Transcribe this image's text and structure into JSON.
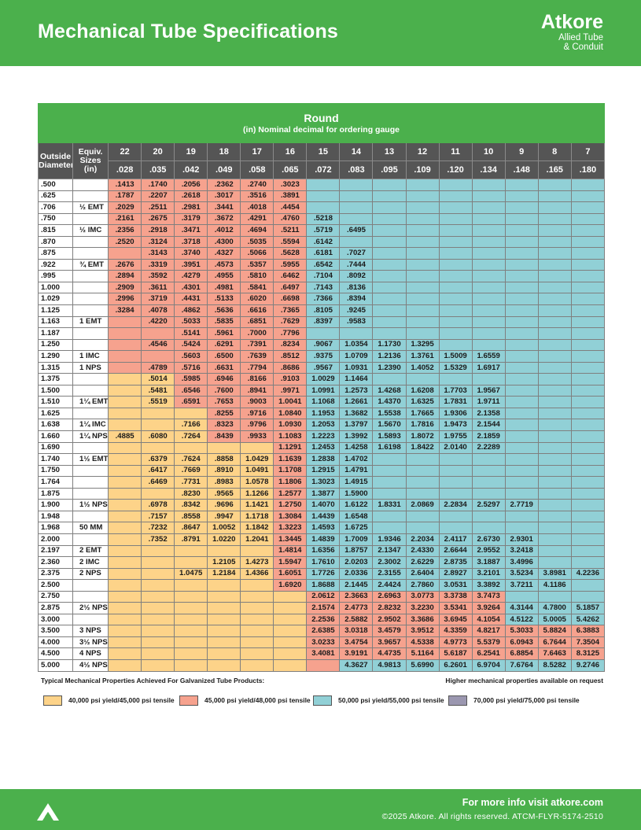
{
  "header": {
    "title": "Mechanical Tube Specifications",
    "brand_name": "Atkore",
    "brand_sub1": "Allied Tube",
    "brand_sub2": "& Conduit"
  },
  "table": {
    "title": "Round",
    "subtitle": "(in) Nominal decimal for ordering gauge",
    "col_od_label": "Outside Diameter",
    "col_equiv_label": "Equiv. Sizes (in)",
    "gauges": [
      "22",
      "20",
      "19",
      "18",
      "17",
      "16",
      "15",
      "14",
      "13",
      "12",
      "11",
      "10",
      "9",
      "8",
      "7"
    ],
    "walls": [
      ".028",
      ".035",
      ".042",
      ".049",
      ".058",
      ".065",
      ".072",
      ".083",
      ".095",
      ".109",
      ".120",
      ".134",
      ".148",
      ".165",
      ".180"
    ],
    "rows": [
      {
        "od": ".500",
        "eq": "",
        "c": "SSSSSSBBBBBBBBB",
        "v": [
          ".1413",
          ".1740",
          ".2056",
          ".2362",
          ".2740",
          ".3023",
          "",
          "",
          "",
          "",
          "",
          "",
          "",
          "",
          ""
        ]
      },
      {
        "od": ".625",
        "eq": "",
        "c": "SSSSSSBBBBBBBBB",
        "v": [
          ".1787",
          ".2207",
          ".2618",
          ".3017",
          ".3516",
          ".3891",
          "",
          "",
          "",
          "",
          "",
          "",
          "",
          "",
          ""
        ]
      },
      {
        "od": ".706",
        "eq": "½ EMT",
        "c": "SSSSSSBBBBBBBBB",
        "v": [
          ".2029",
          ".2511",
          ".2981",
          ".3441",
          ".4018",
          ".4454",
          "",
          "",
          "",
          "",
          "",
          "",
          "",
          "",
          ""
        ]
      },
      {
        "od": ".750",
        "eq": "",
        "c": "SSSSSSBBBBBBBBB",
        "v": [
          ".2161",
          ".2675",
          ".3179",
          ".3672",
          ".4291",
          ".4760",
          ".5218",
          "",
          "",
          "",
          "",
          "",
          "",
          "",
          ""
        ]
      },
      {
        "od": ".815",
        "eq": "½ IMC",
        "c": "SSSSSSBBBBBBBBB",
        "v": [
          ".2356",
          ".2918",
          ".3471",
          ".4012",
          ".4694",
          ".5211",
          ".5719",
          ".6495",
          "",
          "",
          "",
          "",
          "",
          "",
          ""
        ]
      },
      {
        "od": ".870",
        "eq": "",
        "c": "SSSSSSBBBBBBBBB",
        "v": [
          ".2520",
          ".3124",
          ".3718",
          ".4300",
          ".5035",
          ".5594",
          ".6142",
          "",
          "",
          "",
          "",
          "",
          "",
          "",
          ""
        ]
      },
      {
        "od": ".875",
        "eq": "",
        "c": "SSSSSSBBBBBBBBB",
        "v": [
          "",
          ".3143",
          ".3740",
          ".4327",
          ".5066",
          ".5628",
          ".6181",
          ".7027",
          "",
          "",
          "",
          "",
          "",
          "",
          ""
        ]
      },
      {
        "od": ".922",
        "eq": "¾ EMT",
        "c": "SSSSSSBBBBBBBBB",
        "v": [
          ".2676",
          ".3319",
          ".3951",
          ".4573",
          ".5357",
          ".5955",
          ".6542",
          ".7444",
          "",
          "",
          "",
          "",
          "",
          "",
          ""
        ]
      },
      {
        "od": ".995",
        "eq": "",
        "c": "SSSSSSBBBBBBBBB",
        "v": [
          ".2894",
          ".3592",
          ".4279",
          ".4955",
          ".5810",
          ".6462",
          ".7104",
          ".8092",
          "",
          "",
          "",
          "",
          "",
          "",
          ""
        ]
      },
      {
        "od": "1.000",
        "eq": "",
        "c": "SSSSSSBBBBBBBBB",
        "v": [
          ".2909",
          ".3611",
          ".4301",
          ".4981",
          ".5841",
          ".6497",
          ".7143",
          ".8136",
          "",
          "",
          "",
          "",
          "",
          "",
          ""
        ]
      },
      {
        "od": "1.029",
        "eq": "",
        "c": "SSSSSSBBBBBBBBB",
        "v": [
          ".2996",
          ".3719",
          ".4431",
          ".5133",
          ".6020",
          ".6698",
          ".7366",
          ".8394",
          "",
          "",
          "",
          "",
          "",
          "",
          ""
        ]
      },
      {
        "od": "1.125",
        "eq": "",
        "c": "SSSSSSBBBBBBBBB",
        "v": [
          ".3284",
          ".4078",
          ".4862",
          ".5636",
          ".6616",
          ".7365",
          ".8105",
          ".9245",
          "",
          "",
          "",
          "",
          "",
          "",
          ""
        ]
      },
      {
        "od": "1.163",
        "eq": "1 EMT",
        "c": "SSSSSSBBBBBBBBB",
        "v": [
          "",
          ".4220",
          ".5033",
          ".5835",
          ".6851",
          ".7629",
          ".8397",
          ".9583",
          "",
          "",
          "",
          "",
          "",
          "",
          ""
        ]
      },
      {
        "od": "1.187",
        "eq": "",
        "c": "SSSSSSBBBBBBBBB",
        "v": [
          "",
          "",
          ".5141",
          ".5961",
          ".7000",
          ".7796",
          "",
          "",
          "",
          "",
          "",
          "",
          "",
          "",
          ""
        ]
      },
      {
        "od": "1.250",
        "eq": "",
        "c": "SSSSSSBBBBBBBBB",
        "v": [
          "",
          ".4546",
          ".5424",
          ".6291",
          ".7391",
          ".8234",
          ".9067",
          "1.0354",
          "1.1730",
          "1.3295",
          "",
          "",
          "",
          "",
          ""
        ]
      },
      {
        "od": "1.290",
        "eq": "1 IMC",
        "c": "SSSSSSBBBBBBBBB",
        "v": [
          "",
          "",
          ".5603",
          ".6500",
          ".7639",
          ".8512",
          ".9375",
          "1.0709",
          "1.2136",
          "1.3761",
          "1.5009",
          "1.6559",
          "",
          "",
          ""
        ]
      },
      {
        "od": "1.315",
        "eq": "1 NPS",
        "c": "SSSSSSBBBBBBBBB",
        "v": [
          "",
          ".4789",
          ".5716",
          ".6631",
          ".7794",
          ".8686",
          ".9567",
          "1.0931",
          "1.2390",
          "1.4052",
          "1.5329",
          "1.6917",
          "",
          "",
          ""
        ]
      },
      {
        "od": "1.375",
        "eq": "",
        "c": "YYSSSSBBBBBBBBB",
        "v": [
          "",
          ".5014",
          ".5985",
          ".6946",
          ".8166",
          ".9103",
          "1.0029",
          "1.1464",
          "",
          "",
          "",
          "",
          "",
          "",
          ""
        ]
      },
      {
        "od": "1.500",
        "eq": "",
        "c": "YYSSSSBBBBBBBBB",
        "v": [
          "",
          ".5481",
          ".6546",
          ".7600",
          ".8941",
          ".9971",
          "1.0991",
          "1.2573",
          "1.4268",
          "1.6208",
          "1.7703",
          "1.9567",
          "",
          "",
          ""
        ]
      },
      {
        "od": "1.510",
        "eq": "1¼ EMT",
        "c": "YYSSSSBBBBBBBBB",
        "v": [
          "",
          ".5519",
          ".6591",
          ".7653",
          ".9003",
          "1.0041",
          "1.1068",
          "1.2661",
          "1.4370",
          "1.6325",
          "1.7831",
          "1.9711",
          "",
          "",
          ""
        ]
      },
      {
        "od": "1.625",
        "eq": "",
        "c": "YYYSSSBBBBBBBBB",
        "v": [
          "",
          "",
          "",
          ".8255",
          ".9716",
          "1.0840",
          "1.1953",
          "1.3682",
          "1.5538",
          "1.7665",
          "1.9306",
          "2.1358",
          "",
          "",
          ""
        ]
      },
      {
        "od": "1.638",
        "eq": "1¼ IMC",
        "c": "YYYSSSBBBBBBBBB",
        "v": [
          "",
          "",
          ".7166",
          ".8323",
          ".9796",
          "1.0930",
          "1.2053",
          "1.3797",
          "1.5670",
          "1.7816",
          "1.9473",
          "2.1544",
          "",
          "",
          ""
        ]
      },
      {
        "od": "1.660",
        "eq": "1¼ NPS",
        "c": "YYYSSSBBBBBBBBB",
        "v": [
          ".4885",
          ".6080",
          ".7264",
          ".8439",
          ".9933",
          "1.1083",
          "1.2223",
          "1.3992",
          "1.5893",
          "1.8072",
          "1.9755",
          "2.1859",
          "",
          "",
          ""
        ]
      },
      {
        "od": "1.690",
        "eq": "",
        "c": "YYYYYSBBBBBBBBB",
        "v": [
          "",
          "",
          "",
          "",
          "",
          "1.1291",
          "1.2453",
          "1.4258",
          "1.6198",
          "1.8422",
          "2.0140",
          "2.2289",
          "",
          "",
          ""
        ]
      },
      {
        "od": "1.740",
        "eq": "1½ EMT",
        "c": "YYYYYSBBBBBBBBB",
        "v": [
          "",
          ".6379",
          ".7624",
          ".8858",
          "1.0429",
          "1.1639",
          "1.2838",
          "1.4702",
          "",
          "",
          "",
          "",
          "",
          "",
          ""
        ]
      },
      {
        "od": "1.750",
        "eq": "",
        "c": "YYYYYSBBBBBBBBB",
        "v": [
          "",
          ".6417",
          ".7669",
          ".8910",
          "1.0491",
          "1.1708",
          "1.2915",
          "1.4791",
          "",
          "",
          "",
          "",
          "",
          "",
          ""
        ]
      },
      {
        "od": "1.764",
        "eq": "",
        "c": "YYYYYSBBBBBBBBB",
        "v": [
          "",
          ".6469",
          ".7731",
          ".8983",
          "1.0578",
          "1.1806",
          "1.3023",
          "1.4915",
          "",
          "",
          "",
          "",
          "",
          "",
          ""
        ]
      },
      {
        "od": "1.875",
        "eq": "",
        "c": "YYYYYSBBBBBBBBB",
        "v": [
          "",
          "",
          ".8230",
          ".9565",
          "1.1266",
          "1.2577",
          "1.3877",
          "1.5900",
          "",
          "",
          "",
          "",
          "",
          "",
          ""
        ]
      },
      {
        "od": "1.900",
        "eq": "1½ NPS",
        "c": "YYYYYSBBBBBBBBB",
        "v": [
          "",
          ".6978",
          ".8342",
          ".9696",
          "1.1421",
          "1.2750",
          "1.4070",
          "1.6122",
          "1.8331",
          "2.0869",
          "2.2834",
          "2.5297",
          "2.7719",
          "",
          ""
        ]
      },
      {
        "od": "1.948",
        "eq": "",
        "c": "YYYYYSBBBBBBBBB",
        "v": [
          "",
          ".7157",
          ".8558",
          ".9947",
          "1.1718",
          "1.3084",
          "1.4439",
          "1.6548",
          "",
          "",
          "",
          "",
          "",
          "",
          ""
        ]
      },
      {
        "od": "1.968",
        "eq": "50 MM",
        "c": "YYYYYSBBBBBBBBB",
        "v": [
          "",
          ".7232",
          ".8647",
          "1.0052",
          "1.1842",
          "1.3223",
          "1.4593",
          "1.6725",
          "",
          "",
          "",
          "",
          "",
          "",
          ""
        ]
      },
      {
        "od": "2.000",
        "eq": "",
        "c": "YYYYYSBBBBBBBBB",
        "v": [
          "",
          ".7352",
          ".8791",
          "1.0220",
          "1.2041",
          "1.3445",
          "1.4839",
          "1.7009",
          "1.9346",
          "2.2034",
          "2.4117",
          "2.6730",
          "2.9301",
          "",
          ""
        ]
      },
      {
        "od": "2.197",
        "eq": "2 EMT",
        "c": "YYYYYSBBBBBBBBB",
        "v": [
          "",
          "",
          "",
          "",
          "",
          "1.4814",
          "1.6356",
          "1.8757",
          "2.1347",
          "2.4330",
          "2.6644",
          "2.9552",
          "3.2418",
          "",
          ""
        ]
      },
      {
        "od": "2.360",
        "eq": "2 IMC",
        "c": "YYYYYSBBBBBBBBB",
        "v": [
          "",
          "",
          "",
          "1.2105",
          "1.4273",
          "1.5947",
          "1.7610",
          "2.0203",
          "2.3002",
          "2.6229",
          "2.8735",
          "3.1887",
          "3.4996",
          "",
          ""
        ]
      },
      {
        "od": "2.375",
        "eq": "2 NPS",
        "c": "YYYYYSBBBBBBBBB",
        "v": [
          "",
          "",
          "1.0475",
          "1.2184",
          "1.4366",
          "1.6051",
          "1.7726",
          "2.0336",
          "2.3155",
          "2.6404",
          "2.8927",
          "3.2101",
          "3.5234",
          "3.8981",
          "4.2236"
        ]
      },
      {
        "od": "2.500",
        "eq": "",
        "c": "YYYYYSBBBBBBBBB",
        "v": [
          "",
          "",
          "",
          "",
          "",
          "1.6920",
          "1.8688",
          "2.1445",
          "2.4424",
          "2.7860",
          "3.0531",
          "3.3892",
          "3.7211",
          "4.1186",
          ""
        ]
      },
      {
        "od": "2.750",
        "eq": "",
        "c": "YYYYYYSSSSSSBBB",
        "v": [
          "",
          "",
          "",
          "",
          "",
          "",
          "2.0612",
          "2.3663",
          "2.6963",
          "3.0773",
          "3.3738",
          "3.7473",
          "",
          "",
          ""
        ]
      },
      {
        "od": "2.875",
        "eq": "2½ NPS",
        "c": "YYYYYYSSSSSSBBB",
        "v": [
          "",
          "",
          "",
          "",
          "",
          "",
          "2.1574",
          "2.4773",
          "2.8232",
          "3.2230",
          "3.5341",
          "3.9264",
          "4.3144",
          "4.7800",
          "5.1857"
        ]
      },
      {
        "od": "3.000",
        "eq": "",
        "c": "YYYYYYSSSSSSBBB",
        "v": [
          "",
          "",
          "",
          "",
          "",
          "",
          "2.2536",
          "2.5882",
          "2.9502",
          "3.3686",
          "3.6945",
          "4.1054",
          "4.5122",
          "5.0005",
          "5.4262"
        ]
      },
      {
        "od": "3.500",
        "eq": "3 NPS",
        "c": "YYYYYYSSSSSSSSS",
        "v": [
          "",
          "",
          "",
          "",
          "",
          "",
          "2.6385",
          "3.0318",
          "3.4579",
          "3.9512",
          "4.3359",
          "4.8217",
          "5.3033",
          "5.8824",
          "6.3883"
        ]
      },
      {
        "od": "4.000",
        "eq": "3½ NPS",
        "c": "YYYYYYSSSSSSSSS",
        "v": [
          "",
          "",
          "",
          "",
          "",
          "",
          "3.0233",
          "3.4754",
          "3.9657",
          "4.5338",
          "4.9773",
          "5.5379",
          "6.0943",
          "6.7644",
          "7.3504"
        ]
      },
      {
        "od": "4.500",
        "eq": "4 NPS",
        "c": "YYYYYYSSSSSSSSS",
        "v": [
          "",
          "",
          "",
          "",
          "",
          "",
          "3.4081",
          "3.9191",
          "4.4735",
          "5.1164",
          "5.6187",
          "6.2541",
          "6.8854",
          "7.6463",
          "8.3125"
        ]
      },
      {
        "od": "5.000",
        "eq": "4½ NPS",
        "c": "YYYYYYSBBBBBBBB",
        "v": [
          "",
          "",
          "",
          "",
          "",
          "",
          "",
          "4.3627",
          "4.9813",
          "5.6990",
          "6.2601",
          "6.9704",
          "7.6764",
          "8.5282",
          "9.2746"
        ]
      }
    ]
  },
  "notes": {
    "left": "Typical Mechanical Properties Achieved For Galvanized Tube Products:",
    "right": "Higher mechanical properties available on request"
  },
  "legend": [
    {
      "label": "40,000 psi yield/45,000 psi tensile",
      "color": "#fdd389"
    },
    {
      "label": "45,000 psi yield/48,000 psi tensile",
      "color": "#f6a28e"
    },
    {
      "label": "50,000 psi yield/55,000 psi tensile",
      "color": "#91d0d6"
    },
    {
      "label": "70,000 psi yield/75,000 psi tensile",
      "color": "#9b97b0"
    }
  ],
  "footer": {
    "info": "For more info visit atkore.com",
    "copyright": "©2025 Atkore. All rights reserved. ATCM-FLYR-5174-2510"
  },
  "colors": {
    "brand_green": "#4bb04c",
    "header_gray": "#555555"
  }
}
